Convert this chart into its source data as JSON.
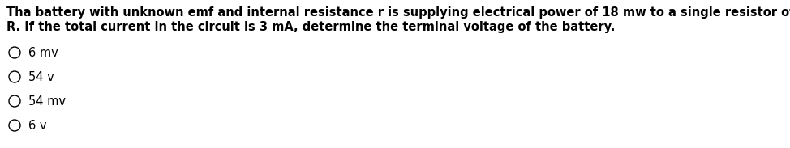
{
  "question_line1": "Tha battery with unknown emf and internal resistance r is supplying electrical power of 18 mw to a single resistor of unknown resistance",
  "question_line2": "R. If the total current in the circuit is 3 mA, determine the terminal voltage of the battery.",
  "options": [
    "6 mv",
    "54 v",
    "54 mv",
    "6 v"
  ],
  "bg_color": "#ffffff",
  "text_color": "#000000",
  "font_size_question": 10.5,
  "font_size_options": 10.5,
  "fig_width": 9.74,
  "fig_height": 1.83,
  "dpi": 100
}
